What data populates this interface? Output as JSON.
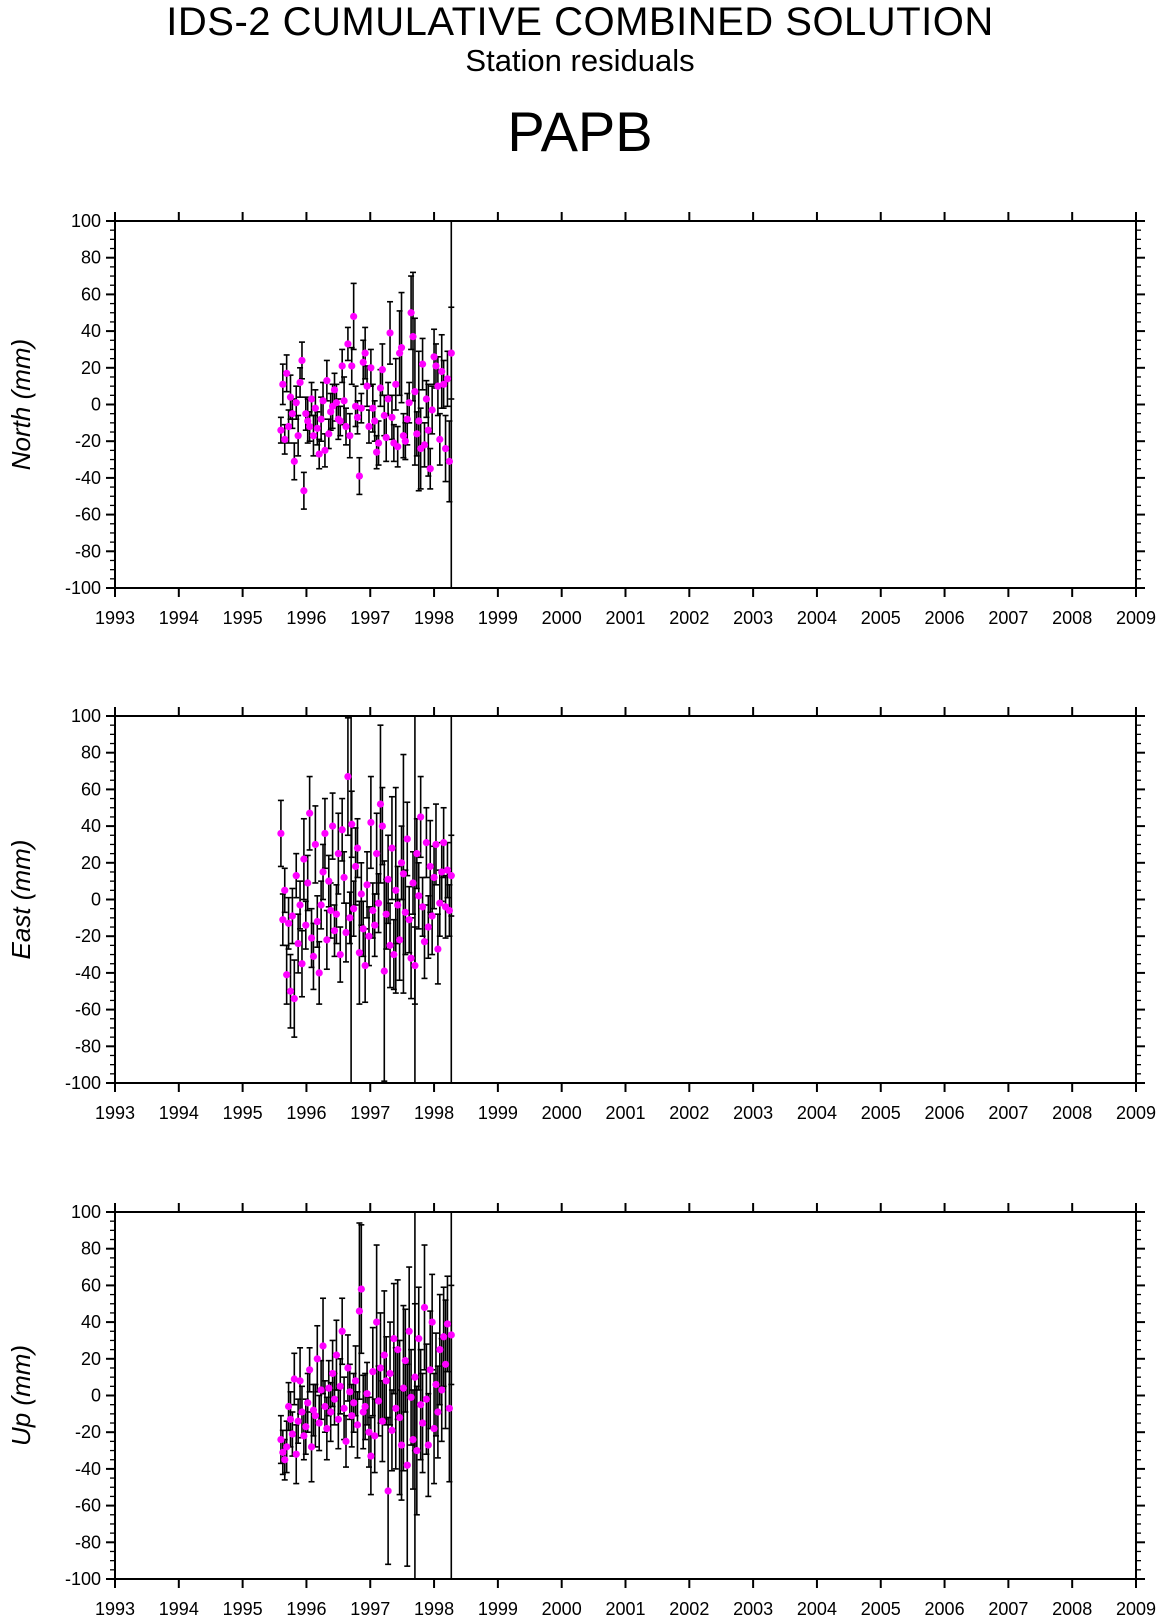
{
  "header": {
    "title": "IDS-2 CUMULATIVE COMBINED SOLUTION",
    "subtitle": "Station residuals",
    "station": "PAPB"
  },
  "colors": {
    "marker": "#ff00ff",
    "errorbar": "#000000",
    "axis": "#000000"
  },
  "chart_data": [
    {
      "type": "scatter",
      "component": "North",
      "ylabel": "North (mm)",
      "xlim": [
        1993,
        2009
      ],
      "ylim": [
        -100,
        100
      ],
      "xticks": [
        "1993",
        "1994",
        "1995",
        "1996",
        "1997",
        "1998",
        "1999",
        "2000",
        "2001",
        "2002",
        "2003",
        "2004",
        "2005",
        "2006",
        "2007",
        "2008",
        "2009"
      ],
      "yticks": [
        "-100",
        "-80",
        "-60",
        "-40",
        "-20",
        "0",
        "20",
        "40",
        "60",
        "80",
        "100"
      ],
      "grid": false,
      "x": [
        1995.6,
        1995.63,
        1995.66,
        1995.69,
        1995.72,
        1995.75,
        1995.78,
        1995.81,
        1995.84,
        1995.87,
        1995.9,
        1995.93,
        1995.96,
        1995.99,
        1996.02,
        1996.05,
        1996.08,
        1996.11,
        1996.14,
        1996.17,
        1996.2,
        1996.23,
        1996.26,
        1996.29,
        1996.32,
        1996.35,
        1996.38,
        1996.41,
        1996.44,
        1996.47,
        1996.5,
        1996.53,
        1996.56,
        1996.59,
        1996.62,
        1996.65,
        1996.68,
        1996.71,
        1996.74,
        1996.77,
        1996.8,
        1996.83,
        1996.86,
        1996.89,
        1996.92,
        1996.95,
        1996.98,
        1997.01,
        1997.04,
        1997.07,
        1997.1,
        1997.13,
        1997.16,
        1997.19,
        1997.22,
        1997.25,
        1997.28,
        1997.31,
        1997.34,
        1997.37,
        1997.4,
        1997.43,
        1997.46,
        1997.49,
        1997.52,
        1997.55,
        1997.58,
        1997.61,
        1997.64,
        1997.67,
        1997.7,
        1997.73,
        1997.76,
        1997.79,
        1997.82,
        1997.85,
        1997.88,
        1997.91,
        1997.94,
        1997.97,
        1998.0,
        1998.03,
        1998.06,
        1998.09,
        1998.12,
        1998.15,
        1998.18,
        1998.21,
        1998.24,
        1998.27
      ],
      "y": [
        -14,
        11,
        -19,
        17,
        -12,
        4,
        -5,
        -31,
        1,
        -17,
        12,
        24,
        -47,
        -5,
        -9,
        -12,
        3,
        -17,
        -2,
        -13,
        -27,
        -8,
        2,
        -25,
        13,
        -16,
        -4,
        -1,
        8,
        1,
        -8,
        -9,
        21,
        2,
        -12,
        33,
        -17,
        21,
        48,
        -1,
        -7,
        -39,
        -2,
        23,
        28,
        10,
        -12,
        20,
        -2,
        -9,
        -26,
        -21,
        9,
        19,
        -6,
        -18,
        3,
        39,
        -7,
        -21,
        11,
        -23,
        28,
        31,
        -17,
        -20,
        -8,
        1,
        50,
        37,
        7,
        -16,
        -9,
        -24,
        22,
        -22,
        3,
        -14,
        -35,
        -3,
        26,
        21,
        10,
        -19,
        18,
        11,
        -24,
        14,
        -31,
        28
      ],
      "err": [
        7,
        11,
        8,
        10,
        9,
        12,
        8,
        10,
        9,
        11,
        8,
        10,
        10,
        9,
        12,
        8,
        9,
        11,
        10,
        9,
        8,
        12,
        10,
        9,
        11,
        8,
        10,
        12,
        9,
        10,
        11,
        8,
        9,
        13,
        10,
        9,
        12,
        10,
        18,
        11,
        9,
        10,
        8,
        12,
        14,
        11,
        9,
        10,
        13,
        11,
        9,
        12,
        10,
        14,
        11,
        13,
        9,
        17,
        12,
        10,
        14,
        11,
        23,
        30,
        12,
        10,
        14,
        11,
        20,
        35,
        40,
        12,
        38,
        22,
        14,
        12,
        10,
        25,
        11,
        13,
        15,
        12,
        16,
        14,
        20,
        13,
        18,
        15,
        22,
        25
      ],
      "long_bars": [
        1998.27
      ]
    },
    {
      "type": "scatter",
      "component": "East",
      "ylabel": "East (mm)",
      "xlim": [
        1993,
        2009
      ],
      "ylim": [
        -100,
        100
      ],
      "xticks": [
        "1993",
        "1994",
        "1995",
        "1996",
        "1997",
        "1998",
        "1999",
        "2000",
        "2001",
        "2002",
        "2003",
        "2004",
        "2005",
        "2006",
        "2007",
        "2008",
        "2009"
      ],
      "yticks": [
        "-100",
        "-80",
        "-60",
        "-40",
        "-20",
        "0",
        "20",
        "40",
        "60",
        "80",
        "100"
      ],
      "grid": false,
      "x": [
        1995.6,
        1995.63,
        1995.66,
        1995.69,
        1995.72,
        1995.75,
        1995.78,
        1995.81,
        1995.84,
        1995.87,
        1995.9,
        1995.93,
        1995.96,
        1995.99,
        1996.02,
        1996.05,
        1996.08,
        1996.11,
        1996.14,
        1996.17,
        1996.2,
        1996.23,
        1996.26,
        1996.29,
        1996.32,
        1996.35,
        1996.38,
        1996.41,
        1996.44,
        1996.47,
        1996.5,
        1996.53,
        1996.56,
        1996.59,
        1996.62,
        1996.65,
        1996.68,
        1996.71,
        1996.74,
        1996.77,
        1996.8,
        1996.83,
        1996.86,
        1996.89,
        1996.92,
        1996.95,
        1996.98,
        1997.01,
        1997.04,
        1997.07,
        1997.1,
        1997.13,
        1997.16,
        1997.19,
        1997.22,
        1997.25,
        1997.28,
        1997.31,
        1997.34,
        1997.37,
        1997.4,
        1997.43,
        1997.46,
        1997.49,
        1997.52,
        1997.55,
        1997.58,
        1997.61,
        1997.64,
        1997.67,
        1997.7,
        1997.73,
        1997.76,
        1997.79,
        1997.82,
        1997.85,
        1997.88,
        1997.91,
        1997.94,
        1997.97,
        1998.0,
        1998.03,
        1998.06,
        1998.09,
        1998.12,
        1998.15,
        1998.18,
        1998.21,
        1998.24,
        1998.27
      ],
      "y": [
        36,
        -11,
        5,
        -41,
        -13,
        -50,
        -9,
        -54,
        13,
        -24,
        -3,
        -35,
        22,
        -14,
        9,
        47,
        -21,
        -31,
        30,
        -12,
        -40,
        -3,
        15,
        36,
        -22,
        10,
        -6,
        40,
        -17,
        -8,
        25,
        -30,
        38,
        12,
        -18,
        67,
        -10,
        41,
        -5,
        18,
        28,
        -29,
        3,
        -16,
        -36,
        8,
        -20,
        42,
        -6,
        -14,
        25,
        -2,
        52,
        40,
        -39,
        -8,
        11,
        -25,
        28,
        -30,
        5,
        -3,
        -22,
        20,
        14,
        -7,
        33,
        -11,
        -32,
        9,
        -36,
        25,
        2,
        45,
        -4,
        -23,
        31,
        -15,
        18,
        -9,
        12,
        30,
        -27,
        -2,
        15,
        31,
        -4,
        16,
        -6,
        13
      ],
      "err": [
        18,
        14,
        12,
        16,
        14,
        20,
        15,
        21,
        12,
        16,
        13,
        18,
        22,
        13,
        15,
        20,
        16,
        18,
        21,
        14,
        17,
        13,
        15,
        19,
        16,
        14,
        15,
        18,
        14,
        16,
        22,
        15,
        17,
        14,
        16,
        32,
        14,
        18,
        15,
        21,
        16,
        28,
        17,
        15,
        20,
        18,
        16,
        25,
        15,
        17,
        22,
        16,
        43,
        21,
        60,
        19,
        24,
        23,
        28,
        19,
        56,
        21,
        22,
        20,
        65,
        23,
        20,
        18,
        22,
        17,
        21,
        19,
        18,
        22,
        16,
        20,
        19,
        17,
        25,
        21,
        17,
        22,
        19,
        18,
        16,
        19,
        17,
        15,
        14,
        22
      ],
      "long_bars": [
        1996.7,
        1997.7,
        1998.27
      ]
    },
    {
      "type": "scatter",
      "component": "Up",
      "ylabel": "Up (mm)",
      "xlim": [
        1993,
        2009
      ],
      "ylim": [
        -100,
        100
      ],
      "xticks": [
        "1993",
        "1994",
        "1995",
        "1996",
        "1997",
        "1998",
        "1999",
        "2000",
        "2001",
        "2002",
        "2003",
        "2004",
        "2005",
        "2006",
        "2007",
        "2008",
        "2009"
      ],
      "yticks": [
        "-100",
        "-80",
        "-60",
        "-40",
        "-20",
        "0",
        "20",
        "40",
        "60",
        "80",
        "100"
      ],
      "grid": false,
      "x": [
        1995.6,
        1995.63,
        1995.66,
        1995.69,
        1995.72,
        1995.75,
        1995.78,
        1995.81,
        1995.84,
        1995.87,
        1995.9,
        1995.93,
        1995.96,
        1995.99,
        1996.02,
        1996.05,
        1996.08,
        1996.11,
        1996.14,
        1996.17,
        1996.2,
        1996.23,
        1996.26,
        1996.29,
        1996.32,
        1996.35,
        1996.38,
        1996.41,
        1996.44,
        1996.47,
        1996.5,
        1996.53,
        1996.56,
        1996.59,
        1996.62,
        1996.65,
        1996.68,
        1996.71,
        1996.74,
        1996.77,
        1996.8,
        1996.83,
        1996.86,
        1996.89,
        1996.92,
        1996.95,
        1996.98,
        1997.01,
        1997.04,
        1997.07,
        1997.1,
        1997.13,
        1997.16,
        1997.19,
        1997.22,
        1997.25,
        1997.28,
        1997.31,
        1997.34,
        1997.37,
        1997.4,
        1997.43,
        1997.46,
        1997.49,
        1997.52,
        1997.55,
        1997.58,
        1997.61,
        1997.64,
        1997.67,
        1997.7,
        1997.73,
        1997.76,
        1997.79,
        1997.82,
        1997.85,
        1997.88,
        1997.91,
        1997.94,
        1997.97,
        1998.0,
        1998.03,
        1998.06,
        1998.09,
        1998.12,
        1998.15,
        1998.18,
        1998.21,
        1998.24,
        1998.27
      ],
      "y": [
        -24,
        -31,
        -35,
        -28,
        -6,
        -13,
        -21,
        9,
        -32,
        -14,
        8,
        -9,
        -22,
        -17,
        -4,
        14,
        -28,
        -8,
        -11,
        20,
        -15,
        3,
        27,
        -6,
        -18,
        4,
        -9,
        12,
        -2,
        22,
        -13,
        5,
        35,
        -7,
        -25,
        15,
        2,
        -11,
        -4,
        8,
        -16,
        46,
        58,
        -9,
        -6,
        1,
        -20,
        -33,
        13,
        -22,
        40,
        -3,
        15,
        -14,
        22,
        8,
        -52,
        12,
        -19,
        31,
        -7,
        25,
        -12,
        -27,
        4,
        19,
        -38,
        35,
        -1,
        -24,
        10,
        -30,
        31,
        -5,
        -15,
        48,
        -2,
        -27,
        14,
        40,
        -18,
        6,
        -9,
        25,
        3,
        32,
        17,
        39,
        -7,
        33
      ],
      "err": [
        13,
        12,
        11,
        14,
        13,
        15,
        12,
        14,
        16,
        12,
        18,
        14,
        13,
        15,
        16,
        12,
        19,
        14,
        17,
        18,
        15,
        16,
        26,
        14,
        17,
        15,
        16,
        18,
        14,
        19,
        16,
        15,
        18,
        17,
        14,
        18,
        15,
        17,
        16,
        19,
        18,
        48,
        35,
        20,
        18,
        17,
        19,
        21,
        24,
        20,
        42,
        19,
        30,
        22,
        35,
        24,
        40,
        28,
        22,
        30,
        33,
        38,
        42,
        30,
        45,
        28,
        55,
        35,
        26,
        27,
        40,
        35,
        28,
        30,
        27,
        34,
        30,
        28,
        32,
        26,
        30,
        28,
        25,
        30,
        28,
        27,
        35,
        26,
        40,
        27
      ],
      "long_bars": [
        1997.7,
        1998.27
      ]
    }
  ]
}
